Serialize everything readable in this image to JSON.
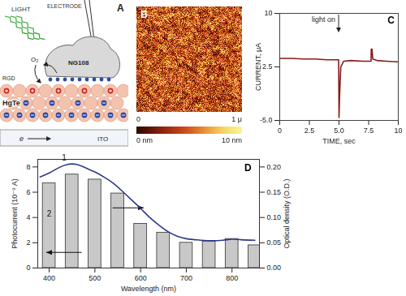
{
  "panels": {
    "A": {
      "label": "A",
      "texts": {
        "light": "LIGHT",
        "electrode": "ELECTRODE",
        "cell": "NG108",
        "oxygen": "O₂",
        "rgd": "RGD",
        "film": "HgTe",
        "substrate": "ITO",
        "electron": "e"
      }
    },
    "B": {
      "label": "B",
      "scale_start": "0",
      "scale_end": "1 μ",
      "colorbar": {
        "range": [
          0,
          10
        ],
        "ticks": [
          {
            "value": 0,
            "label": "0 nm"
          },
          {
            "value": 10,
            "label": "10 nm"
          }
        ]
      }
    }
  },
  "chart_data": [
    {
      "type": "line",
      "title": "C",
      "x_label": "TIME, sec",
      "y_label": "CURRENT, μA",
      "color": "#8b1a1a",
      "x": [
        0,
        1,
        2,
        3,
        4,
        4.9,
        4.97,
        5.0,
        5.05,
        5.15,
        5.4,
        6,
        7,
        7.7,
        7.72,
        7.78,
        7.85,
        8.2,
        9,
        10
      ],
      "values": [
        3.7,
        3.7,
        3.6,
        3.6,
        3.5,
        3.5,
        3.5,
        -4.6,
        -1.5,
        2.5,
        3.3,
        3.4,
        3.3,
        3.3,
        5.0,
        5.0,
        3.6,
        3.4,
        3.3,
        3.2
      ],
      "xlim": [
        0,
        10
      ],
      "xticks": [
        0,
        2.5,
        {
          "value": 5,
          "label": "5.0"
        },
        7.5,
        10
      ],
      "ylim": [
        -5,
        10
      ],
      "yticks": [
        {
          "value": -5,
          "label": "-5.0"
        },
        2.5,
        10
      ],
      "annotations": [
        {
          "text": "light on",
          "x": 5
        }
      ]
    },
    {
      "type": "bar",
      "title": "D",
      "x_label": "Wavelength (nm)",
      "y_label": "Photocurrent (10⁻⁹ A)",
      "y2_label": "Optical density (O.D.)",
      "xlim": [
        375,
        860
      ],
      "xticks": [
        400,
        500,
        600,
        700,
        800
      ],
      "ylim": [
        0,
        8.6
      ],
      "yticks": [
        0,
        2,
        4,
        6,
        8
      ],
      "y2lim": [
        0,
        0.215
      ],
      "y2ticks": [
        {
          "value": 0,
          "label": "0.00"
        },
        {
          "value": 0.05,
          "label": "0.05"
        },
        {
          "value": 0.1,
          "label": "0.10"
        },
        {
          "value": 0.15,
          "label": "0.15"
        },
        {
          "value": 0.2,
          "label": "0.20"
        }
      ],
      "series": [
        {
          "name": "2",
          "type": "bar",
          "color": "#c8c8c8",
          "x": [
            400,
            450,
            500,
            550,
            600,
            650,
            700,
            750,
            800,
            850
          ],
          "values": [
            6.7,
            7.4,
            7.0,
            5.9,
            3.5,
            2.8,
            2.0,
            2.1,
            2.3,
            1.8
          ]
        },
        {
          "name": "1",
          "type": "line",
          "axis": "y2",
          "color": "#2e3a87",
          "x": [
            380,
            400,
            420,
            440,
            460,
            480,
            500,
            520,
            540,
            560,
            580,
            600,
            620,
            640,
            660,
            680,
            700,
            720,
            750,
            780,
            800,
            820,
            850
          ],
          "values": [
            0.18,
            0.188,
            0.198,
            0.205,
            0.205,
            0.198,
            0.19,
            0.18,
            0.168,
            0.152,
            0.135,
            0.118,
            0.1,
            0.085,
            0.072,
            0.063,
            0.058,
            0.056,
            0.054,
            0.055,
            0.057,
            0.056,
            0.055
          ]
        }
      ]
    }
  ]
}
